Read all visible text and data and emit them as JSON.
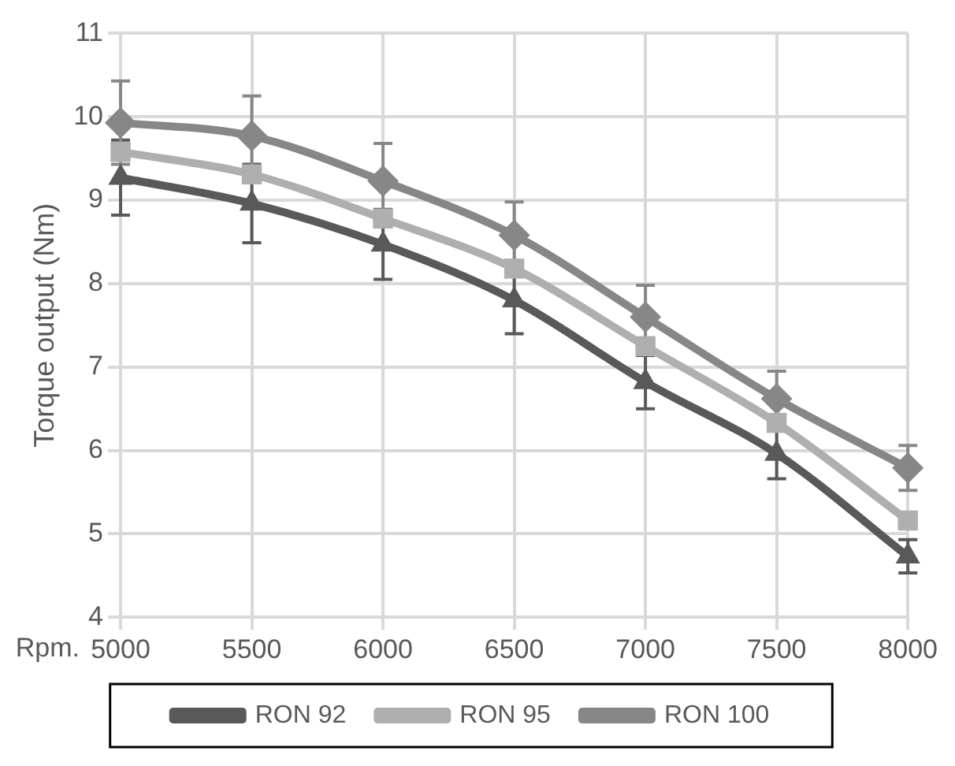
{
  "chart_data": {
    "type": "line",
    "xlabel": "Rpm.",
    "ylabel": "Torque output (Nm)",
    "categories": [
      "5000",
      "5500",
      "6000",
      "6500",
      "7000",
      "7500",
      "8000"
    ],
    "series": [
      {
        "name": "RON 92",
        "color": "#595959",
        "marker": "triangle",
        "values": [
          9.27,
          8.96,
          8.47,
          7.8,
          6.82,
          5.96,
          4.73
        ],
        "errors": [
          0.45,
          0.47,
          0.42,
          0.4,
          0.32,
          0.3,
          0.2
        ]
      },
      {
        "name": "RON 95",
        "color": "#afafaf",
        "marker": "square",
        "values": [
          9.58,
          9.31,
          8.78,
          8.18,
          7.25,
          6.33,
          5.16
        ]
      },
      {
        "name": "RON 100",
        "color": "#878787",
        "marker": "diamond",
        "values": [
          9.93,
          9.77,
          9.23,
          8.58,
          7.6,
          6.62,
          5.79
        ],
        "errors": [
          0.5,
          0.48,
          0.45,
          0.4,
          0.38,
          0.33,
          0.27
        ]
      }
    ],
    "ylim": [
      4,
      11
    ],
    "yticks": [
      4,
      5,
      6,
      7,
      8,
      9,
      10,
      11
    ],
    "grid": true,
    "legend": "bottom",
    "line_style": "solid"
  }
}
